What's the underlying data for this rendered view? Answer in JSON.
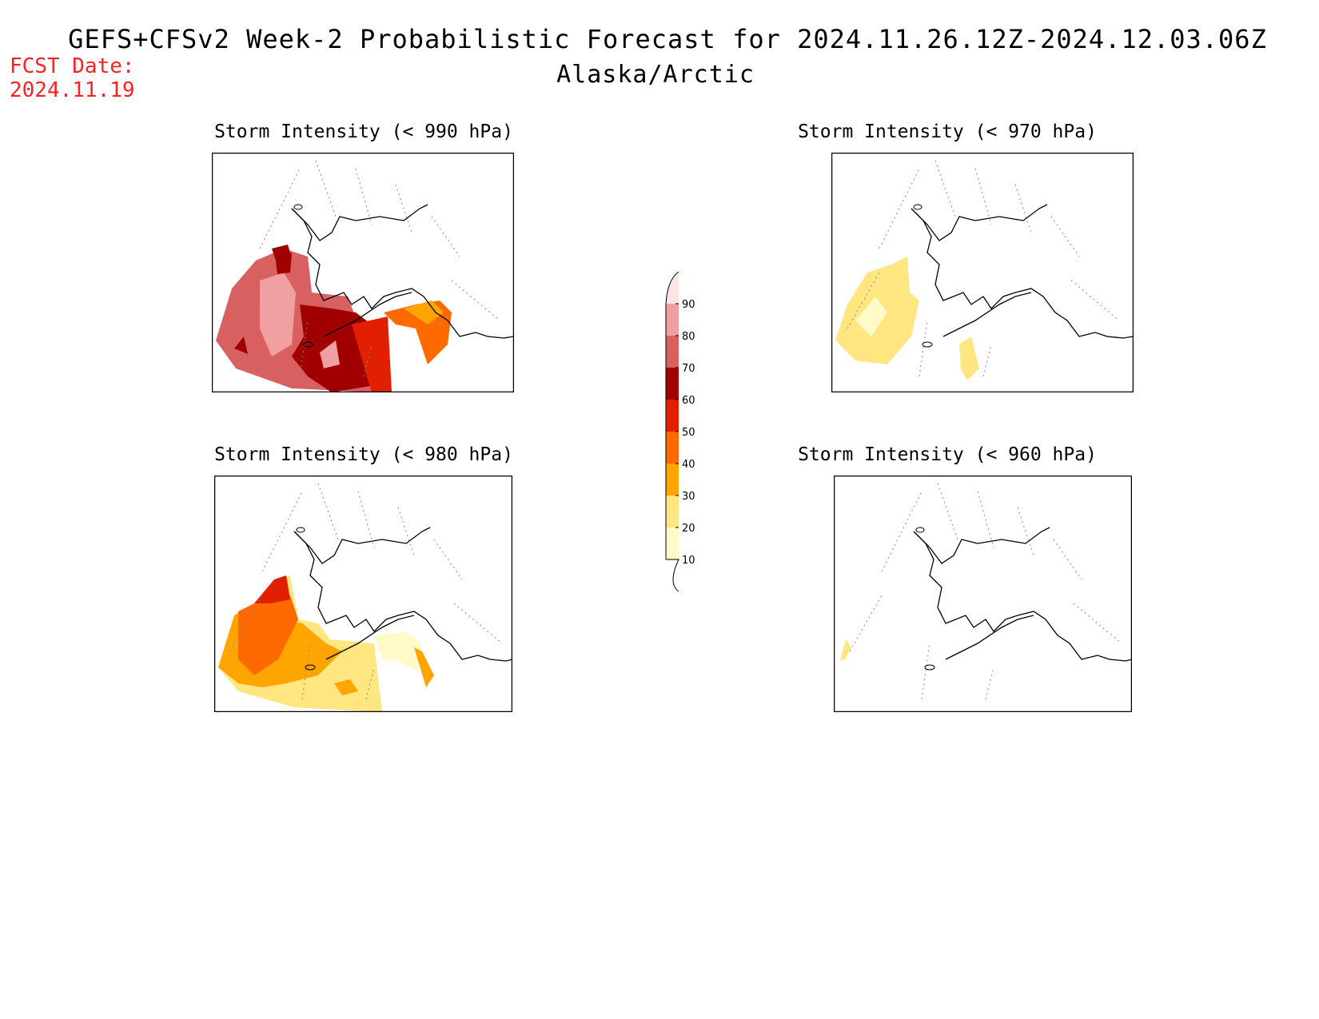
{
  "header": {
    "title": "GEFS+CFSv2 Week-2 Probabilistic Forecast for 2024.11.26.12Z-2024.12.03.06Z",
    "region": "Alaska/Arctic",
    "fcst_label": "FCST Date:",
    "fcst_date": "2024.11.19"
  },
  "panels": [
    {
      "id": "p990",
      "title": "Storm Intensity (< 990 hPa)"
    },
    {
      "id": "p970",
      "title": "Storm Intensity (< 970 hPa)"
    },
    {
      "id": "p980",
      "title": "Storm Intensity (< 980 hPa)"
    },
    {
      "id": "p960",
      "title": "Storm Intensity (< 960 hPa)"
    }
  ],
  "colorbar": {
    "levels": [
      "10",
      "20",
      "30",
      "40",
      "50",
      "60",
      "70",
      "80",
      "90"
    ],
    "colors": [
      "#fffac8",
      "#ffe680",
      "#ffa500",
      "#ff6a00",
      "#e02000",
      "#a00000",
      "#d96060",
      "#f0a0a0",
      "#fce4e4"
    ]
  }
}
